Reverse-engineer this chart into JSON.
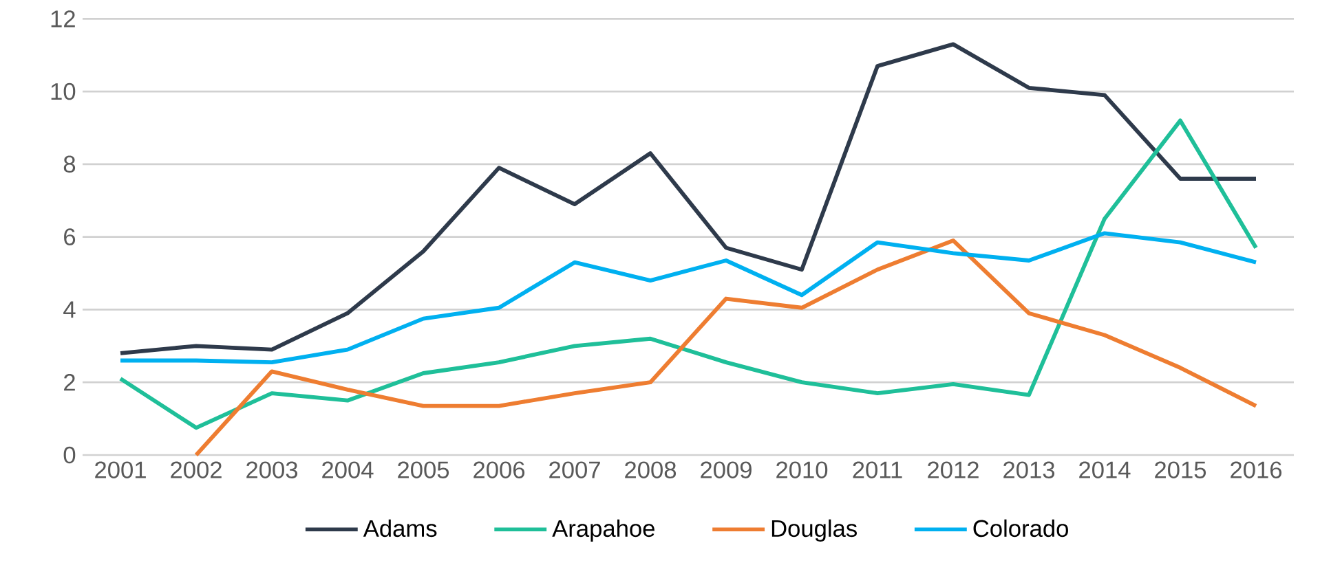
{
  "chart_data": {
    "type": "line",
    "categories": [
      "2001",
      "2002",
      "2003",
      "2004",
      "2005",
      "2006",
      "2007",
      "2008",
      "2009",
      "2010",
      "2011",
      "2012",
      "2013",
      "2014",
      "2015",
      "2016"
    ],
    "series": [
      {
        "name": "Adams",
        "color": "#2e3a4b",
        "values": [
          2.8,
          3.0,
          2.9,
          3.9,
          5.6,
          7.9,
          6.9,
          8.3,
          5.7,
          5.1,
          10.7,
          11.3,
          10.1,
          9.9,
          7.6,
          7.6
        ]
      },
      {
        "name": "Arapahoe",
        "color": "#1fbf99",
        "values": [
          2.1,
          0.75,
          1.7,
          1.5,
          2.25,
          2.55,
          3.0,
          3.2,
          2.55,
          2.0,
          1.7,
          1.95,
          1.65,
          6.5,
          9.2,
          5.7
        ]
      },
      {
        "name": "Douglas",
        "color": "#ee7d31",
        "values": [
          null,
          0,
          2.3,
          1.8,
          1.35,
          1.35,
          1.7,
          2.0,
          4.3,
          4.05,
          5.1,
          5.9,
          3.9,
          3.3,
          2.4,
          1.35
        ]
      },
      {
        "name": "Colorado",
        "color": "#00b0f0",
        "values": [
          2.6,
          2.6,
          2.55,
          2.9,
          3.75,
          4.05,
          5.3,
          4.8,
          5.35,
          4.4,
          5.85,
          5.55,
          5.35,
          6.1,
          5.85,
          5.3
        ]
      }
    ],
    "ylim": [
      0,
      12
    ],
    "yticks": [
      0,
      2,
      4,
      6,
      8,
      10,
      12
    ],
    "grid": "y",
    "legend": "bottom",
    "marker": "none",
    "line_style": "solid"
  }
}
